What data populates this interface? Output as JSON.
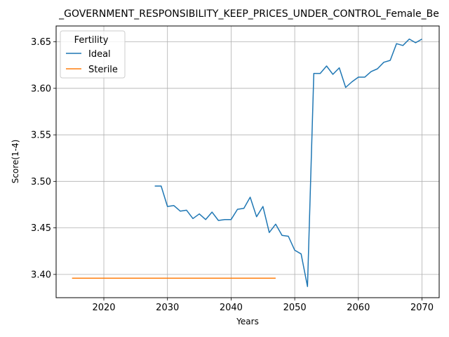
{
  "chart_data": {
    "type": "line",
    "title": "_GOVERNMENT_RESPONSIBILITY_KEEP_PRICES_UNDER_CONTROL_Female_Be",
    "xlabel": "Years",
    "ylabel": "Score(1-4)",
    "xlim": [
      2012.5,
      2072.7
    ],
    "ylim": [
      3.375,
      3.667
    ],
    "xticks": [
      2020,
      2030,
      2040,
      2050,
      2060,
      2070
    ],
    "yticks": [
      3.4,
      3.45,
      3.5,
      3.55,
      3.6,
      3.65
    ],
    "xtick_labels": [
      "2020",
      "2030",
      "2040",
      "2050",
      "2060",
      "2070"
    ],
    "ytick_labels": [
      "3.40",
      "3.45",
      "3.50",
      "3.55",
      "3.60",
      "3.65"
    ],
    "grid": true,
    "legend": {
      "title": "Fertility",
      "placement": "top-left"
    },
    "series": [
      {
        "name": "Ideal",
        "color": "#1f77b4",
        "x": [
          2028,
          2029,
          2030,
          2031,
          2032,
          2033,
          2034,
          2035,
          2036,
          2037,
          2038,
          2039,
          2040,
          2041,
          2042,
          2043,
          2044,
          2045,
          2046,
          2047,
          2048,
          2049,
          2050,
          2051,
          2052,
          2053,
          2054,
          2055,
          2056,
          2057,
          2058,
          2059,
          2060,
          2061,
          2062,
          2063,
          2064,
          2065,
          2066,
          2067,
          2068,
          2069,
          2070
        ],
        "y": [
          3.495,
          3.495,
          3.473,
          3.474,
          3.468,
          3.469,
          3.46,
          3.465,
          3.459,
          3.467,
          3.458,
          3.459,
          3.459,
          3.47,
          3.471,
          3.483,
          3.462,
          3.473,
          3.445,
          3.454,
          3.442,
          3.441,
          3.426,
          3.422,
          3.387,
          3.616,
          3.616,
          3.624,
          3.615,
          3.622,
          3.601,
          3.607,
          3.612,
          3.612,
          3.618,
          3.621,
          3.628,
          3.63,
          3.648,
          3.646,
          3.653,
          3.649,
          3.653
        ]
      },
      {
        "name": "Sterile",
        "color": "#ff7f0e",
        "x": [
          2015,
          2016,
          2017,
          2018,
          2019,
          2020,
          2021,
          2022,
          2023,
          2024,
          2025,
          2026,
          2027,
          2028,
          2029,
          2030,
          2031,
          2032,
          2033,
          2034,
          2035,
          2036,
          2037,
          2038,
          2039,
          2040,
          2041,
          2042,
          2043,
          2044,
          2045,
          2046,
          2047
        ],
        "y": [
          3.396,
          3.396,
          3.396,
          3.396,
          3.396,
          3.396,
          3.396,
          3.396,
          3.396,
          3.396,
          3.396,
          3.396,
          3.396,
          3.396,
          3.396,
          3.396,
          3.396,
          3.396,
          3.396,
          3.396,
          3.396,
          3.396,
          3.396,
          3.396,
          3.396,
          3.396,
          3.396,
          3.396,
          3.396,
          3.396,
          3.396,
          3.396,
          3.396
        ]
      }
    ]
  }
}
